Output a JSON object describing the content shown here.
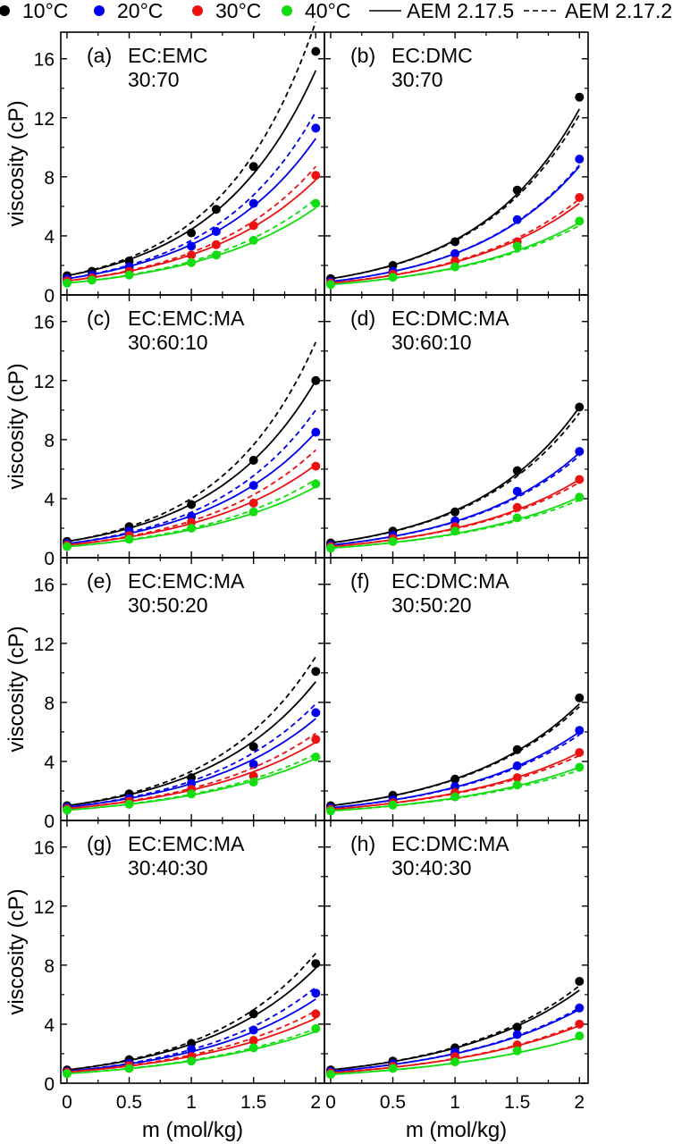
{
  "legend": {
    "entries": [
      {
        "label": "10°C",
        "color": "#000000",
        "kind": "marker"
      },
      {
        "label": "20°C",
        "color": "#0000ee",
        "kind": "marker"
      },
      {
        "label": "30°C",
        "color": "#ee1111",
        "kind": "marker"
      },
      {
        "label": "40°C",
        "color": "#11dd11",
        "kind": "marker"
      },
      {
        "label": "AEM 2.17.5",
        "color": "#000000",
        "kind": "solid"
      },
      {
        "label": "AEM 2.17.2",
        "color": "#000000",
        "kind": "dashed"
      }
    ]
  },
  "axes": {
    "ylabel": "viscosity (cP)",
    "xlabel": "m (mol/kg)",
    "yticks": [
      "0",
      "4",
      "8",
      "12",
      "16"
    ],
    "xticks": [
      "0",
      "0.5",
      "1",
      "1.5",
      "2"
    ]
  },
  "chart_data": {
    "type": "scatter",
    "xlim": [
      -0.05,
      2.07
    ],
    "ylim": [
      0,
      17.8
    ],
    "x": [
      0,
      0.2,
      0.5,
      1,
      1.2,
      1.5,
      2
    ],
    "temperatures": [
      "10°C",
      "20°C",
      "30°C",
      "40°C"
    ],
    "model_lines": [
      "AEM 2.17.5 (solid)",
      "AEM 2.17.2 (dashed)"
    ],
    "panels": [
      {
        "label": "(a)",
        "solvent": "EC:EMC",
        "ratio": "30:70",
        "series": [
          {
            "name": "10°C",
            "points": [
              [
                0,
                1.3
              ],
              [
                0.2,
                1.6
              ],
              [
                0.5,
                2.3
              ],
              [
                1,
                4.2
              ],
              [
                1.2,
                5.8
              ],
              [
                1.5,
                8.7
              ],
              [
                2,
                16.5
              ]
            ],
            "solid_end": 15.2,
            "dashed_end": 18.5
          },
          {
            "name": "20°C",
            "points": [
              [
                0,
                1.1
              ],
              [
                0.2,
                1.35
              ],
              [
                0.5,
                1.9
              ],
              [
                1,
                3.3
              ],
              [
                1.2,
                4.3
              ],
              [
                1.5,
                6.2
              ],
              [
                2,
                11.3
              ]
            ],
            "solid_end": 10.6,
            "dashed_end": 12.4
          },
          {
            "name": "30°C",
            "points": [
              [
                0,
                0.95
              ],
              [
                0.2,
                1.15
              ],
              [
                0.5,
                1.6
              ],
              [
                1,
                2.7
              ],
              [
                1.2,
                3.4
              ],
              [
                1.5,
                4.7
              ],
              [
                2,
                8.1
              ]
            ],
            "solid_end": 7.8,
            "dashed_end": 8.7
          },
          {
            "name": "40°C",
            "points": [
              [
                0,
                0.8
              ],
              [
                0.2,
                1.0
              ],
              [
                0.5,
                1.35
              ],
              [
                1,
                2.2
              ],
              [
                1.2,
                2.7
              ],
              [
                1.5,
                3.7
              ],
              [
                2,
                6.2
              ]
            ],
            "solid_end": 5.9,
            "dashed_end": 6.5
          }
        ]
      },
      {
        "label": "(b)",
        "solvent": "EC:DMC",
        "ratio": "30:70",
        "series": [
          {
            "name": "10°C",
            "points": [
              [
                0,
                1.1
              ],
              [
                0.5,
                2.0
              ],
              [
                1,
                3.6
              ],
              [
                1.5,
                7.1
              ],
              [
                2,
                13.4
              ]
            ],
            "solid_end": 12.6,
            "dashed_end": 12.2
          },
          {
            "name": "20°C",
            "points": [
              [
                0,
                0.9
              ],
              [
                0.5,
                1.6
              ],
              [
                1,
                2.8
              ],
              [
                1.5,
                5.1
              ],
              [
                2,
                9.2
              ]
            ],
            "solid_end": 8.7,
            "dashed_end": 8.8
          },
          {
            "name": "30°C",
            "points": [
              [
                0,
                0.8
              ],
              [
                0.5,
                1.4
              ],
              [
                1,
                2.3
              ],
              [
                1.5,
                3.6
              ],
              [
                2,
                6.6
              ]
            ],
            "solid_end": 6.2,
            "dashed_end": 6.5
          },
          {
            "name": "40°C",
            "points": [
              [
                0,
                0.7
              ],
              [
                0.5,
                1.2
              ],
              [
                1,
                1.9
              ],
              [
                1.5,
                3.3
              ],
              [
                2,
                5.0
              ]
            ],
            "solid_end": 4.9,
            "dashed_end": 4.7
          }
        ]
      },
      {
        "label": "(c)",
        "solvent": "EC:EMC:MA",
        "ratio": "30:60:10",
        "series": [
          {
            "name": "10°C",
            "points": [
              [
                0,
                1.1
              ],
              [
                0.5,
                2.1
              ],
              [
                1,
                3.6
              ],
              [
                1.5,
                6.6
              ],
              [
                2,
                12.0
              ]
            ],
            "solid_end": 12.0,
            "dashed_end": 14.6
          },
          {
            "name": "20°C",
            "points": [
              [
                0,
                0.95
              ],
              [
                0.5,
                1.8
              ],
              [
                1,
                2.8
              ],
              [
                1.5,
                4.9
              ],
              [
                2,
                8.5
              ]
            ],
            "solid_end": 8.5,
            "dashed_end": 10.0
          },
          {
            "name": "30°C",
            "points": [
              [
                0,
                0.85
              ],
              [
                0.5,
                1.5
              ],
              [
                1,
                2.4
              ],
              [
                1.5,
                3.7
              ],
              [
                2,
                6.2
              ]
            ],
            "solid_end": 6.3,
            "dashed_end": 7.3
          },
          {
            "name": "40°C",
            "points": [
              [
                0,
                0.75
              ],
              [
                0.5,
                1.25
              ],
              [
                1,
                2.0
              ],
              [
                1.5,
                3.1
              ],
              [
                2,
                5.0
              ]
            ],
            "solid_end": 4.8,
            "dashed_end": 5.3
          }
        ]
      },
      {
        "label": "(d)",
        "solvent": "EC:DMC:MA",
        "ratio": "30:60:10",
        "series": [
          {
            "name": "10°C",
            "points": [
              [
                0,
                1.0
              ],
              [
                0.5,
                1.8
              ],
              [
                1,
                3.1
              ],
              [
                1.5,
                5.9
              ],
              [
                2,
                10.2
              ]
            ],
            "solid_end": 10.2,
            "dashed_end": 9.8
          },
          {
            "name": "20°C",
            "points": [
              [
                0,
                0.85
              ],
              [
                0.5,
                1.5
              ],
              [
                1,
                2.5
              ],
              [
                1.5,
                4.5
              ],
              [
                2,
                7.2
              ]
            ],
            "solid_end": 7.1,
            "dashed_end": 6.9
          },
          {
            "name": "30°C",
            "points": [
              [
                0,
                0.75
              ],
              [
                0.5,
                1.3
              ],
              [
                1,
                2.1
              ],
              [
                1.5,
                3.4
              ],
              [
                2,
                5.3
              ]
            ],
            "solid_end": 5.3,
            "dashed_end": 5.1
          },
          {
            "name": "40°C",
            "points": [
              [
                0,
                0.65
              ],
              [
                0.5,
                1.1
              ],
              [
                1,
                1.8
              ],
              [
                1.5,
                2.7
              ],
              [
                2,
                4.1
              ]
            ],
            "solid_end": 4.1,
            "dashed_end": 3.9
          }
        ]
      },
      {
        "label": "(e)",
        "solvent": "EC:EMC:MA",
        "ratio": "30:50:20",
        "series": [
          {
            "name": "10°C",
            "points": [
              [
                0,
                1.0
              ],
              [
                0.5,
                1.8
              ],
              [
                1,
                2.9
              ],
              [
                1.5,
                5.0
              ],
              [
                2,
                10.1
              ]
            ],
            "solid_end": 9.4,
            "dashed_end": 11.1
          },
          {
            "name": "20°C",
            "points": [
              [
                0,
                0.9
              ],
              [
                0.5,
                1.5
              ],
              [
                1,
                2.5
              ],
              [
                1.5,
                3.8
              ],
              [
                2,
                7.3
              ]
            ],
            "solid_end": 6.9,
            "dashed_end": 7.9
          },
          {
            "name": "30°C",
            "points": [
              [
                0,
                0.8
              ],
              [
                0.5,
                1.3
              ],
              [
                1,
                2.1
              ],
              [
                1.5,
                3.0
              ],
              [
                2,
                5.5
              ]
            ],
            "solid_end": 5.3,
            "dashed_end": 5.9
          },
          {
            "name": "40°C",
            "points": [
              [
                0,
                0.7
              ],
              [
                0.5,
                1.1
              ],
              [
                1,
                1.8
              ],
              [
                1.5,
                2.6
              ],
              [
                2,
                4.3
              ]
            ],
            "solid_end": 4.2,
            "dashed_end": 4.5
          }
        ]
      },
      {
        "label": "(f)",
        "solvent": "EC:DMC:MA",
        "ratio": "30:50:20",
        "series": [
          {
            "name": "10°C",
            "points": [
              [
                0,
                1.0
              ],
              [
                0.5,
                1.7
              ],
              [
                1,
                2.8
              ],
              [
                1.5,
                4.8
              ],
              [
                2,
                8.3
              ]
            ],
            "solid_end": 7.9,
            "dashed_end": 7.7
          },
          {
            "name": "20°C",
            "points": [
              [
                0,
                0.85
              ],
              [
                0.5,
                1.4
              ],
              [
                1,
                2.3
              ],
              [
                1.5,
                3.7
              ],
              [
                2,
                6.1
              ]
            ],
            "solid_end": 6.0,
            "dashed_end": 5.8
          },
          {
            "name": "30°C",
            "points": [
              [
                0,
                0.75
              ],
              [
                0.5,
                1.2
              ],
              [
                1,
                1.9
              ],
              [
                1.5,
                2.9
              ],
              [
                2,
                4.6
              ]
            ],
            "solid_end": 4.6,
            "dashed_end": 4.4
          },
          {
            "name": "40°C",
            "points": [
              [
                0,
                0.65
              ],
              [
                0.5,
                1.05
              ],
              [
                1,
                1.6
              ],
              [
                1.5,
                2.4
              ],
              [
                2,
                3.6
              ]
            ],
            "solid_end": 3.6,
            "dashed_end": 3.4
          }
        ]
      },
      {
        "label": "(g)",
        "solvent": "EC:EMC:MA",
        "ratio": "30:40:30",
        "series": [
          {
            "name": "10°C",
            "points": [
              [
                0,
                0.9
              ],
              [
                0.5,
                1.6
              ],
              [
                1,
                2.7
              ],
              [
                1.5,
                4.7
              ],
              [
                2,
                8.1
              ]
            ],
            "solid_end": 7.8,
            "dashed_end": 8.8
          },
          {
            "name": "20°C",
            "points": [
              [
                0,
                0.8
              ],
              [
                0.5,
                1.35
              ],
              [
                1,
                2.3
              ],
              [
                1.5,
                3.6
              ],
              [
                2,
                6.1
              ]
            ],
            "solid_end": 5.7,
            "dashed_end": 6.5
          },
          {
            "name": "30°C",
            "points": [
              [
                0,
                0.75
              ],
              [
                0.5,
                1.2
              ],
              [
                1,
                1.8
              ],
              [
                1.5,
                2.9
              ],
              [
                2,
                4.7
              ]
            ],
            "solid_end": 4.4,
            "dashed_end": 4.9
          },
          {
            "name": "40°C",
            "points": [
              [
                0,
                0.65
              ],
              [
                0.5,
                1.0
              ],
              [
                1,
                1.5
              ],
              [
                1.5,
                2.4
              ],
              [
                2,
                3.7
              ]
            ],
            "solid_end": 3.5,
            "dashed_end": 3.7
          }
        ]
      },
      {
        "label": "(h)",
        "solvent": "EC:DMC:MA",
        "ratio": "30:40:30",
        "series": [
          {
            "name": "10°C",
            "points": [
              [
                0,
                0.9
              ],
              [
                0.5,
                1.5
              ],
              [
                1,
                2.4
              ],
              [
                1.5,
                3.8
              ],
              [
                2,
                6.9
              ]
            ],
            "solid_end": 6.3,
            "dashed_end": 6.6
          },
          {
            "name": "20°C",
            "points": [
              [
                0,
                0.8
              ],
              [
                0.5,
                1.3
              ],
              [
                1,
                2.1
              ],
              [
                1.5,
                3.3
              ],
              [
                2,
                5.1
              ]
            ],
            "solid_end": 5.0,
            "dashed_end": 5.1
          },
          {
            "name": "30°C",
            "points": [
              [
                0,
                0.7
              ],
              [
                0.5,
                1.15
              ],
              [
                1,
                1.8
              ],
              [
                1.5,
                2.6
              ],
              [
                2,
                4.0
              ]
            ],
            "solid_end": 3.9,
            "dashed_end": 4.0
          },
          {
            "name": "40°C",
            "points": [
              [
                0,
                0.6
              ],
              [
                0.5,
                1.0
              ],
              [
                1,
                1.45
              ],
              [
                1.5,
                2.2
              ],
              [
                2,
                3.2
              ]
            ],
            "solid_end": 3.1,
            "dashed_end": 3.1
          }
        ]
      }
    ]
  }
}
